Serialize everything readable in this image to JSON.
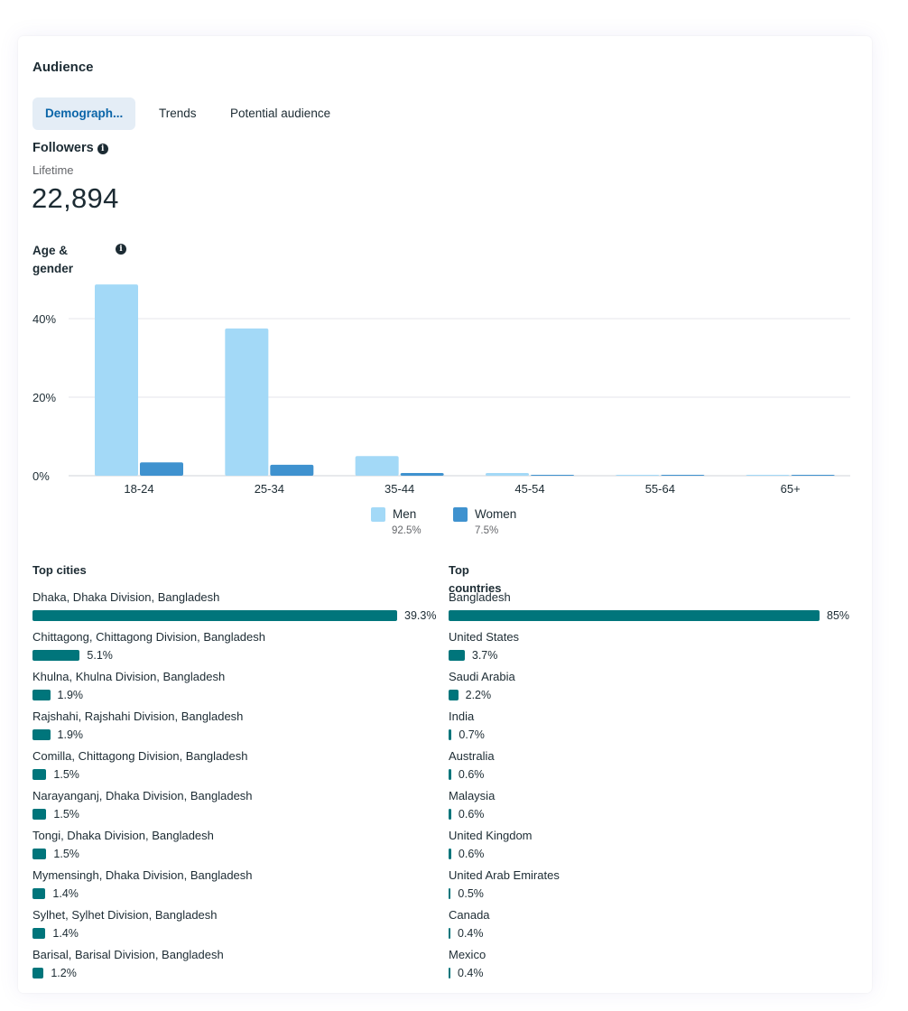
{
  "audience": {
    "title": "Audience",
    "tabs": [
      {
        "label": "Demograph...",
        "active": true
      },
      {
        "label": "Trends",
        "active": false
      },
      {
        "label": "Potential audience",
        "active": false
      }
    ],
    "followers_label": "Followers",
    "period": "Lifetime",
    "followers_count": "22,894",
    "info_glyph": "i"
  },
  "age_gender": {
    "title": "Age & gender",
    "legend": [
      {
        "name": "Men",
        "percent": "92.5%",
        "color": "#a3d9f7"
      },
      {
        "name": "Women",
        "percent": "7.5%",
        "color": "#3f92cf"
      }
    ]
  },
  "chart_data": {
    "type": "bar",
    "title": "Age & gender",
    "categories": [
      "18-24",
      "25-34",
      "35-44",
      "45-54",
      "55-64",
      "65+"
    ],
    "series": [
      {
        "name": "Men",
        "values": [
          48.7,
          37.5,
          5.0,
          0.7,
          0.2,
          0.2
        ],
        "color": "#a3d9f7"
      },
      {
        "name": "Women",
        "values": [
          3.4,
          2.8,
          0.7,
          0.2,
          0.1,
          0.1
        ],
        "color": "#3f92cf"
      }
    ],
    "ylim": [
      0,
      50
    ],
    "yticks": [
      "0%",
      "20%",
      "40%"
    ],
    "ytick_values": [
      0,
      20,
      40
    ],
    "grid": true,
    "legend_position": "bottom"
  },
  "top_cities": {
    "title": "Top cities",
    "items": [
      {
        "label": "Dhaka, Dhaka Division, Bangladesh",
        "value": 39.3,
        "display": "39.3%"
      },
      {
        "label": "Chittagong, Chittagong Division, Bangladesh",
        "value": 5.1,
        "display": "5.1%"
      },
      {
        "label": "Khulna, Khulna Division, Bangladesh",
        "value": 1.9,
        "display": "1.9%"
      },
      {
        "label": "Rajshahi, Rajshahi Division, Bangladesh",
        "value": 1.9,
        "display": "1.9%"
      },
      {
        "label": "Comilla, Chittagong Division, Bangladesh",
        "value": 1.5,
        "display": "1.5%"
      },
      {
        "label": "Narayanganj, Dhaka Division, Bangladesh",
        "value": 1.5,
        "display": "1.5%"
      },
      {
        "label": "Tongi, Dhaka Division, Bangladesh",
        "value": 1.5,
        "display": "1.5%"
      },
      {
        "label": "Mymensingh, Dhaka Division, Bangladesh",
        "value": 1.4,
        "display": "1.4%"
      },
      {
        "label": "Sylhet, Sylhet Division, Bangladesh",
        "value": 1.4,
        "display": "1.4%"
      },
      {
        "label": "Barisal, Barisal Division, Bangladesh",
        "value": 1.2,
        "display": "1.2%"
      }
    ]
  },
  "top_countries": {
    "title": "Top countries",
    "items": [
      {
        "label": "Bangladesh",
        "value": 85,
        "display": "85%"
      },
      {
        "label": "United States",
        "value": 3.7,
        "display": "3.7%"
      },
      {
        "label": "Saudi Arabia",
        "value": 2.2,
        "display": "2.2%"
      },
      {
        "label": "India",
        "value": 0.7,
        "display": "0.7%"
      },
      {
        "label": "Australia",
        "value": 0.6,
        "display": "0.6%"
      },
      {
        "label": "Malaysia",
        "value": 0.6,
        "display": "0.6%"
      },
      {
        "label": "United Kingdom",
        "value": 0.6,
        "display": "0.6%"
      },
      {
        "label": "United Arab Emirates",
        "value": 0.5,
        "display": "0.5%"
      },
      {
        "label": "Canada",
        "value": 0.4,
        "display": "0.4%"
      },
      {
        "label": "Mexico",
        "value": 0.4,
        "display": "0.4%"
      }
    ]
  },
  "colors": {
    "bar": "#00757b",
    "tab_active_bg": "#e4edf6",
    "tab_active_text": "#0a65a8"
  }
}
